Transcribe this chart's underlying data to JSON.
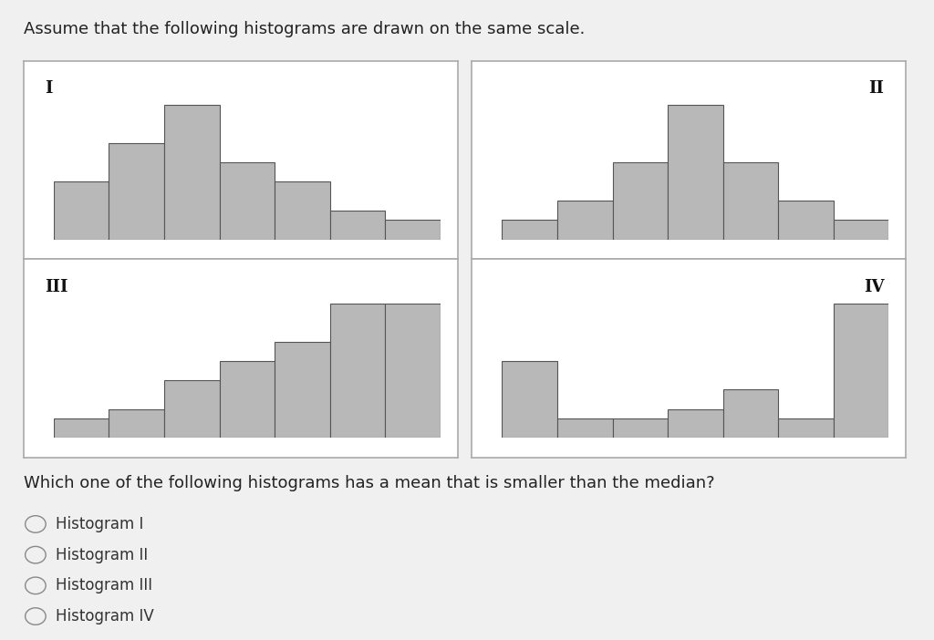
{
  "title_text": "Assume that the following histograms are drawn on the same scale.",
  "question_text": "Which one of the following histograms has a mean that is smaller than the median?",
  "options": [
    "Histogram I",
    "Histogram II",
    "Histogram III",
    "Histogram IV"
  ],
  "hist1": {
    "label": "I",
    "values": [
      3,
      5,
      7,
      4,
      3,
      1.5,
      1
    ],
    "label_pos": "left"
  },
  "hist2": {
    "label": "II",
    "values": [
      1,
      2,
      4,
      7,
      4,
      2,
      1
    ],
    "label_pos": "right"
  },
  "hist3": {
    "label": "III",
    "values": [
      1,
      1.5,
      3,
      4,
      5,
      7,
      7
    ],
    "label_pos": "left"
  },
  "hist4": {
    "label": "IV",
    "values": [
      4,
      1,
      1,
      1.5,
      2.5,
      1,
      7
    ],
    "label_pos": "right"
  },
  "bar_color": "#b8b8b8",
  "edge_color": "#555555",
  "bg_color": "#f0f0f0",
  "panel_bg": "#ffffff",
  "border_color": "#aaaaaa",
  "label_fontsize": 13,
  "title_fontsize": 13,
  "question_fontsize": 13,
  "option_fontsize": 12
}
